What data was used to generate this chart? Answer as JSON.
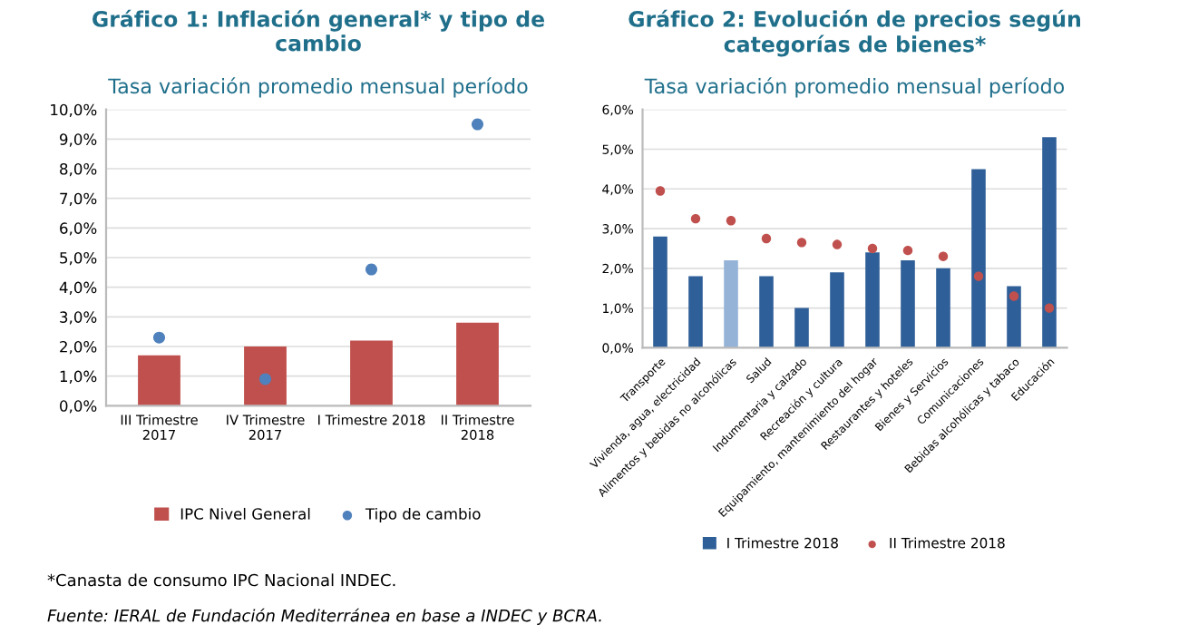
{
  "chart_data": [
    {
      "type": "bar",
      "title": "Gráfico 1: Inflación general* y tipo de\ncambio",
      "subtitle": "Tasa variación promedio mensual período",
      "categories": [
        "III Trimestre\n2017",
        "IV Trimestre\n2017",
        "I Trimestre 2018",
        "II Trimestre\n2018"
      ],
      "series": [
        {
          "name": "IPC Nivel General",
          "color": "#c0504d",
          "values": [
            1.7,
            2.0,
            2.2,
            2.8
          ]
        },
        {
          "name": "Tipo de cambio",
          "type": "scatter",
          "color": "#4f81bd",
          "values": [
            2.3,
            0.9,
            4.6,
            9.5
          ]
        }
      ],
      "ylim": [
        0,
        10
      ],
      "yticks": [
        {
          "value": 0,
          "label": "0,0%"
        },
        {
          "value": 1,
          "label": "1,0%"
        },
        {
          "value": 2,
          "label": "2,0%"
        },
        {
          "value": 3,
          "label": "3,0%"
        },
        {
          "value": 4,
          "label": "4,0%"
        },
        {
          "value": 5,
          "label": "5,0%"
        },
        {
          "value": 6,
          "label": "6,0%"
        },
        {
          "value": 7,
          "label": "7,0%"
        },
        {
          "value": 8,
          "label": "8,0%"
        },
        {
          "value": 9,
          "label": "9,0%"
        },
        {
          "value": 10,
          "label": "10,0%"
        }
      ],
      "grid": "y",
      "legend": "bottom",
      "marker": "circle",
      "annotations": [
        "*Canasta de consumo IPC Nacional INDEC.",
        "Fuente: IERAL de Fundación Mediterránea en base a INDEC y BCRA."
      ]
    },
    {
      "type": "bar",
      "title": "Gráfico 2: Evolución de precios según\ncategorías de bienes*",
      "subtitle": "Tasa variación promedio mensual período",
      "categories": [
        "Transporte",
        "Vivienda, agua, electricidad",
        "Alimentos y bebidas no alcohólicas",
        "Salud",
        "Indumentaria y calzado",
        "Recreación y cultura",
        "Equipamiento, mantenimiento del hogar",
        "Restaurantes y hoteles",
        "Bienes y Servicios",
        "Comunicaciones",
        "Bebidas alcohólicas y tabaco",
        "Educación"
      ],
      "series": [
        {
          "name": "I Trimestre 2018",
          "color": "#2f5f98",
          "colors": [
            "#2f5f98",
            "#2f5f98",
            "#95b3d7",
            "#2f5f98",
            "#2f5f98",
            "#2f5f98",
            "#2f5f98",
            "#2f5f98",
            "#2f5f98",
            "#2f5f98",
            "#2f5f98",
            "#2f5f98"
          ],
          "values": [
            2.8,
            1.8,
            2.2,
            1.8,
            1.0,
            1.9,
            2.4,
            2.2,
            2.0,
            4.5,
            1.55,
            5.3
          ]
        },
        {
          "name": "II Trimestre 2018",
          "type": "scatter",
          "color": "#c0504d",
          "values": [
            3.95,
            3.25,
            3.2,
            2.75,
            2.65,
            2.6,
            2.5,
            2.45,
            2.3,
            1.8,
            1.3,
            1.0
          ]
        }
      ],
      "ylim": [
        0,
        6
      ],
      "yticks": [
        {
          "value": 0,
          "label": "0,0%"
        },
        {
          "value": 1,
          "label": "1,0%"
        },
        {
          "value": 2,
          "label": "2,0%"
        },
        {
          "value": 3,
          "label": "3,0%"
        },
        {
          "value": 4,
          "label": "4,0%"
        },
        {
          "value": 5,
          "label": "5,0%"
        },
        {
          "value": 6,
          "label": "6,0%"
        }
      ],
      "grid": "y",
      "legend": "bottom",
      "marker": "circle"
    }
  ]
}
